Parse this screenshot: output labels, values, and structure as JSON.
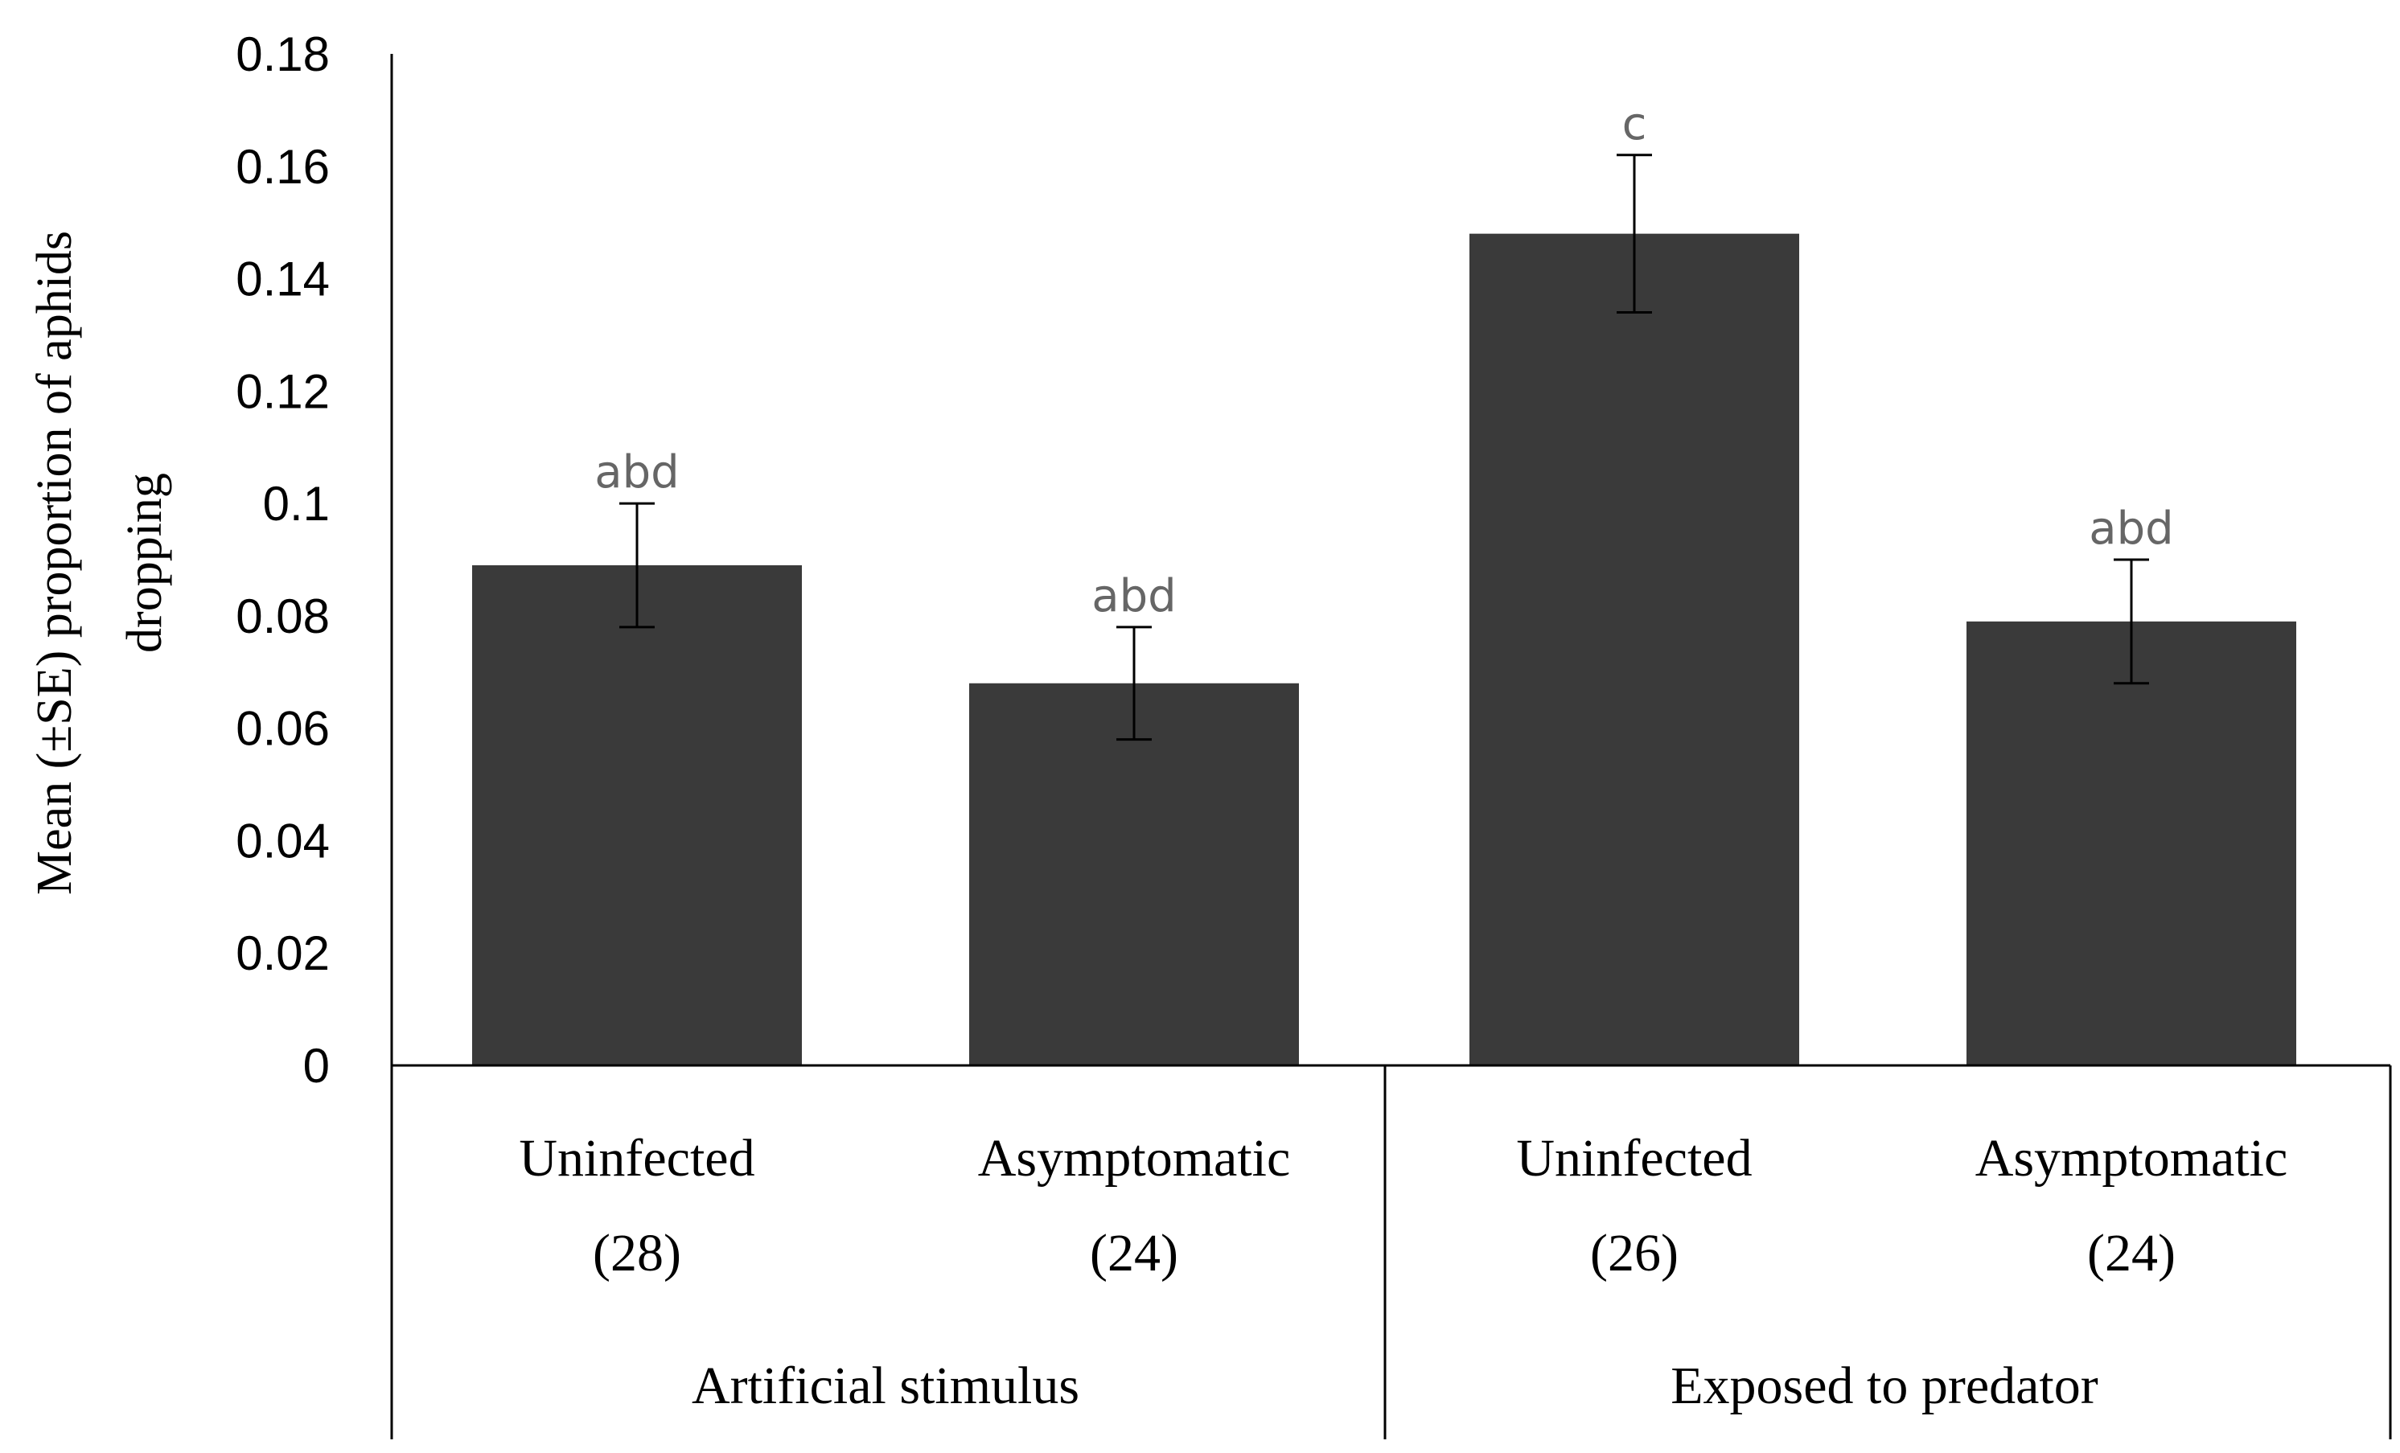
{
  "chart_data": {
    "type": "bar",
    "ylabel_lines": [
      "Mean (±SE) proportion of aphids",
      "dropping"
    ],
    "xlabel": "",
    "ylim": [
      0,
      0.18
    ],
    "yticks": [
      "0",
      "0.02",
      "0.04",
      "0.06",
      "0.08",
      "0.1",
      "0.12",
      "0.14",
      "0.16",
      "0.18"
    ],
    "grid": false,
    "legend": "none",
    "groups": [
      "Artificial stimulus",
      "Exposed to predator"
    ],
    "categories": [
      {
        "label": "Uninfected",
        "n": "(28)",
        "group": 0
      },
      {
        "label": "Asymptomatic",
        "n": "(24)",
        "group": 0
      },
      {
        "label": "Uninfected",
        "n": "(26)",
        "group": 1
      },
      {
        "label": "Asymptomatic",
        "n": "(24)",
        "group": 1
      }
    ],
    "values": [
      0.089,
      0.068,
      0.148,
      0.079
    ],
    "errors": [
      0.011,
      0.01,
      0.014,
      0.011
    ],
    "significance": [
      "abd",
      "abd",
      "c",
      "abd"
    ],
    "bar_color": "#3a3a3a"
  }
}
